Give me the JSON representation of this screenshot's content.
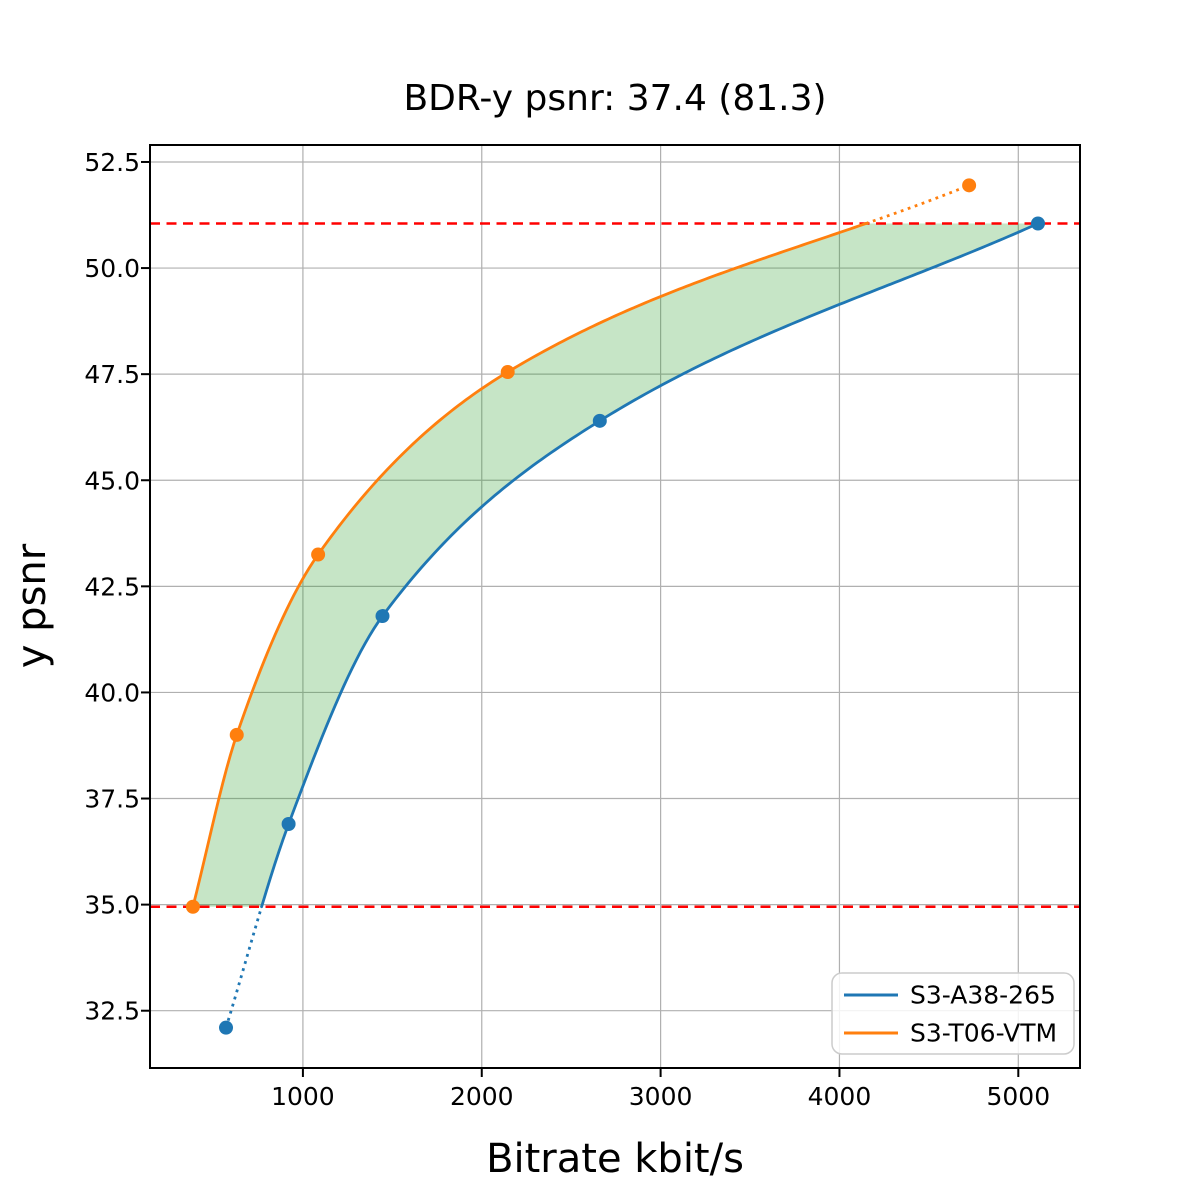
{
  "chart_data": {
    "type": "line",
    "title": "BDR-y psnr: 37.4 (81.3)",
    "xlabel": "Bitrate kbit/s",
    "ylabel": "y psnr",
    "xlim": [
      145,
      5345
    ],
    "ylim": [
      31.15,
      52.9
    ],
    "xticks": [
      1000,
      2000,
      3000,
      4000,
      5000
    ],
    "yticks": [
      32.5,
      35.0,
      37.5,
      40.0,
      42.5,
      45.0,
      47.5,
      50.0,
      52.5
    ],
    "grid": true,
    "grid_color": "#b0b0b0",
    "legend_position": "lower right",
    "series": [
      {
        "name": "S3-A38-265",
        "color": "#1f77b4",
        "x": [
          570,
          920,
          1445,
          2660,
          5110
        ],
        "y": [
          32.1,
          36.9,
          41.8,
          46.4,
          51.05
        ]
      },
      {
        "name": "S3-T06-VTM",
        "color": "#ff7f0e",
        "x": [
          385,
          630,
          1085,
          2145,
          4725
        ],
        "y": [
          34.95,
          39.0,
          43.25,
          47.55,
          51.95
        ]
      }
    ],
    "hlines": [
      {
        "y": 34.95,
        "color": "#ff0000",
        "style": "dashed"
      },
      {
        "y": 51.05,
        "color": "#ff0000",
        "style": "dashed"
      }
    ],
    "overlap_range": [
      34.95,
      51.05
    ],
    "fill_between_color": "#2ca02c",
    "fill_between_opacity": 0.27
  }
}
